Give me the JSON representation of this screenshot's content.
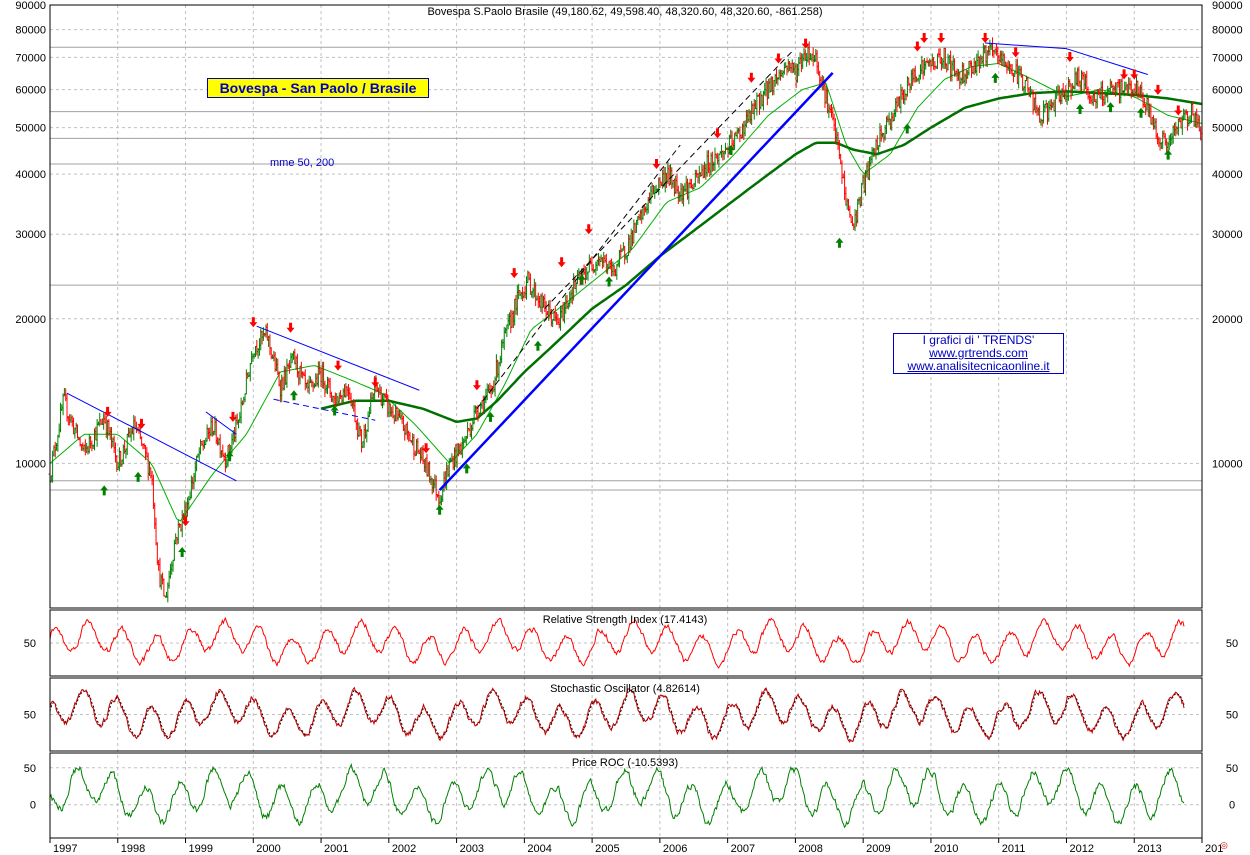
{
  "header": {
    "title": "Bovespa S.Paolo Brasile (49,180.62, 49,598.40, 48,320.60, 48,320.60, -861.258)"
  },
  "annotations": {
    "badge": "Bovespa - San Paolo / Brasile",
    "ma_note": "mme 50, 200",
    "credits": [
      "I grafici di ' TRENDS'",
      "www.grtrends.com",
      "www.analisitecnicaonline.it"
    ]
  },
  "colors": {
    "price_up": "#008000",
    "price_down": "#ff0000",
    "ema_fast": "#00b000",
    "ema_slow": "#007000",
    "trendline": "#0000ff",
    "rsi": "#ff0000",
    "stoch": "#c00000",
    "roc": "#008000",
    "arrow_sell": "#ff0000",
    "arrow_buy": "#008000",
    "grid": "#c0c0c0"
  },
  "chart_data": [
    {
      "type": "line",
      "title": "Bovespa S.Paolo Brasile (49,180.62, 49,598.40, 48,320.60, 48,320.60, -861.258)",
      "scale": "log",
      "ylim": [
        5000,
        90000
      ],
      "yticks": [
        "90000",
        "80000",
        "70000",
        "60000",
        "50000",
        "40000",
        "30000",
        "20000",
        "10000"
      ],
      "ytick_values": [
        90000,
        80000,
        70000,
        60000,
        50000,
        40000,
        30000,
        20000,
        10000
      ],
      "xlabels": [
        "1997",
        "1998",
        "1999",
        "2000",
        "2001",
        "2002",
        "2003",
        "2004",
        "2005",
        "2006",
        "2007",
        "2008",
        "2009",
        "2010",
        "2011",
        "2012",
        "2013",
        "201"
      ],
      "xlim": [
        1997.0,
        2014.0
      ],
      "grid": true,
      "series": [
        {
          "role": "price",
          "x": [
            1997.0,
            1997.2,
            1997.5,
            1997.8,
            1998.0,
            1998.25,
            1998.5,
            1998.6,
            1998.7,
            1998.85,
            1999.0,
            1999.2,
            1999.4,
            1999.6,
            1999.8,
            2000.0,
            2000.2,
            2000.4,
            2000.6,
            2000.8,
            2001.0,
            2001.2,
            2001.4,
            2001.6,
            2001.8,
            2002.0,
            2002.2,
            2002.45,
            2002.6,
            2002.75,
            2002.9,
            2003.1,
            2003.3,
            2003.5,
            2003.7,
            2003.9,
            2004.05,
            2004.3,
            2004.5,
            2004.7,
            2004.9,
            2005.1,
            2005.3,
            2005.5,
            2005.7,
            2005.9,
            2006.1,
            2006.3,
            2006.5,
            2006.7,
            2006.9,
            2007.1,
            2007.3,
            2007.5,
            2007.7,
            2007.9,
            2008.0,
            2008.15,
            2008.3,
            2008.45,
            2008.6,
            2008.75,
            2008.85,
            2009.0,
            2009.2,
            2009.4,
            2009.6,
            2009.8,
            2010.0,
            2010.2,
            2010.4,
            2010.6,
            2010.85,
            2011.0,
            2011.2,
            2011.4,
            2011.6,
            2011.8,
            2012.0,
            2012.2,
            2012.4,
            2012.6,
            2012.8,
            2013.0,
            2013.2,
            2013.35,
            2013.5,
            2013.7,
            2013.85,
            2014.0
          ],
          "y": [
            9500,
            13500,
            10500,
            12500,
            10000,
            12000,
            9500,
            6000,
            5200,
            7000,
            8000,
            10500,
            12000,
            10200,
            12500,
            17500,
            18500,
            14500,
            16500,
            14000,
            15500,
            13500,
            14500,
            11000,
            14500,
            13000,
            12000,
            10500,
            9500,
            8500,
            10000,
            11000,
            13000,
            14000,
            18000,
            22000,
            24000,
            21000,
            19500,
            23000,
            25000,
            27000,
            25000,
            28000,
            32000,
            37000,
            40000,
            37000,
            38000,
            42000,
            44000,
            47000,
            52000,
            58000,
            63000,
            68000,
            65000,
            72000,
            70000,
            58000,
            48000,
            35000,
            31000,
            38000,
            46000,
            52000,
            59000,
            66000,
            68000,
            70000,
            64000,
            67000,
            72000,
            70000,
            66000,
            62000,
            52000,
            56000,
            60000,
            64000,
            57000,
            59000,
            60000,
            61000,
            55000,
            48000,
            46000,
            52000,
            54000,
            48300
          ]
        },
        {
          "name": "mme 50",
          "role": "ema_fast",
          "x": [
            1997.0,
            1997.5,
            1998.0,
            1998.5,
            1998.9,
            1999.4,
            1999.9,
            2000.4,
            2000.9,
            2001.4,
            2001.9,
            2002.4,
            2002.9,
            2003.3,
            2003.7,
            2004.1,
            2004.6,
            2005.1,
            2005.6,
            2006.1,
            2006.6,
            2007.1,
            2007.6,
            2008.1,
            2008.45,
            2008.75,
            2009.0,
            2009.4,
            2009.8,
            2010.2,
            2010.6,
            2011.0,
            2011.5,
            2012.0,
            2012.5,
            2013.0,
            2013.5,
            2014.0
          ],
          "y": [
            10000,
            11500,
            11500,
            10000,
            7500,
            9500,
            11500,
            15500,
            16000,
            15000,
            14000,
            12000,
            10000,
            11500,
            14500,
            19000,
            21500,
            24500,
            28000,
            35000,
            37500,
            44000,
            53000,
            60000,
            62000,
            46000,
            40000,
            44000,
            55000,
            63000,
            67000,
            68000,
            63000,
            58000,
            60000,
            58000,
            53000,
            51000
          ]
        },
        {
          "name": "mme 200",
          "role": "ema_slow",
          "x": [
            2001.0,
            2001.5,
            2002.0,
            2002.5,
            2003.0,
            2003.3,
            2003.6,
            2004.0,
            2004.5,
            2005.0,
            2005.5,
            2006.0,
            2006.5,
            2007.0,
            2007.5,
            2008.0,
            2008.3,
            2008.6,
            2008.85,
            2009.2,
            2009.6,
            2010.0,
            2010.5,
            2011.0,
            2011.5,
            2012.0,
            2012.5,
            2013.0,
            2013.5,
            2014.0
          ],
          "y": [
            13000,
            13500,
            13500,
            13000,
            12200,
            12400,
            13500,
            15500,
            18000,
            21000,
            23500,
            27000,
            30500,
            34500,
            39000,
            44000,
            46500,
            46500,
            45000,
            44000,
            46000,
            50000,
            55000,
            57500,
            59000,
            59500,
            59000,
            58500,
            57500,
            56000
          ]
        }
      ]
    },
    {
      "type": "line",
      "title": "Relative Strength Index (17.4143)",
      "yticks": [
        "50"
      ],
      "ytick_values": [
        50
      ],
      "ylim": [
        20,
        80
      ],
      "grid": true,
      "last_value": 17.4143
    },
    {
      "type": "line",
      "title": "Stochastic Oscillator (4.82614)",
      "yticks": [
        "50"
      ],
      "ytick_values": [
        50
      ],
      "ylim": [
        0,
        100
      ],
      "grid": true,
      "last_value": 4.82614
    },
    {
      "type": "line",
      "title": "Price ROC (-10.5393)",
      "yticks": [
        "50",
        "0"
      ],
      "ytick_values": [
        50,
        0
      ],
      "ylim": [
        -45,
        70
      ],
      "grid": true,
      "last_value": -10.5393
    }
  ],
  "markers": {
    "sell_arrows": [
      [
        1997.85,
        12500
      ],
      [
        1998.35,
        11800
      ],
      [
        1999.0,
        7400
      ],
      [
        1999.7,
        12200
      ],
      [
        2000.0,
        19200
      ],
      [
        2000.55,
        18700
      ],
      [
        2001.25,
        15600
      ],
      [
        2001.8,
        14400
      ],
      [
        2002.55,
        10500
      ],
      [
        2003.3,
        14200
      ],
      [
        2003.85,
        24300
      ],
      [
        2004.55,
        25600
      ],
      [
        2004.95,
        30000
      ],
      [
        2005.95,
        41000
      ],
      [
        2006.85,
        47500
      ],
      [
        2007.35,
        62000
      ],
      [
        2007.75,
        68000
      ],
      [
        2008.15,
        73000
      ],
      [
        2009.8,
        72000
      ],
      [
        2009.9,
        75000
      ],
      [
        2010.15,
        75000
      ],
      [
        2010.8,
        75000
      ],
      [
        2011.25,
        70000
      ],
      [
        2012.05,
        68500
      ],
      [
        2012.85,
        63000
      ],
      [
        2013.0,
        63000
      ],
      [
        2013.35,
        58500
      ],
      [
        2013.65,
        53000
      ]
    ],
    "buy_arrows": [
      [
        1997.8,
        9000
      ],
      [
        1998.3,
        9600
      ],
      [
        1998.95,
        6700
      ],
      [
        1999.65,
        10600
      ],
      [
        2000.6,
        14200
      ],
      [
        2001.2,
        13200
      ],
      [
        2002.75,
        8200
      ],
      [
        2003.15,
        10000
      ],
      [
        2003.5,
        12800
      ],
      [
        2004.2,
        18000
      ],
      [
        2004.85,
        24700
      ],
      [
        2005.25,
        24500
      ],
      [
        2007.05,
        46000
      ],
      [
        2008.65,
        29500
      ],
      [
        2009.65,
        51000
      ],
      [
        2010.95,
        65000
      ],
      [
        2012.2,
        56000
      ],
      [
        2012.65,
        56500
      ],
      [
        2013.1,
        55000
      ],
      [
        2013.5,
        45000
      ]
    ],
    "trendlines": [
      {
        "from": [
          1997.25,
          14000
        ],
        "to": [
          1999.75,
          9200
        ],
        "style": "solid",
        "width": 1
      },
      {
        "from": [
          1999.3,
          12800
        ],
        "to": [
          1999.75,
          11500
        ],
        "style": "solid",
        "width": 1
      },
      {
        "from": [
          2000.05,
          19300
        ],
        "to": [
          2002.45,
          14200
        ],
        "style": "solid",
        "width": 1
      },
      {
        "from": [
          2000.3,
          13600
        ],
        "to": [
          2001.8,
          12300
        ],
        "style": "dashed",
        "width": 1
      },
      {
        "from": [
          2002.75,
          8800
        ],
        "to": [
          2008.55,
          65000
        ],
        "style": "solid",
        "width": 2.5
      },
      {
        "from": [
          2012.0,
          73000
        ],
        "to": [
          2013.2,
          64500
        ],
        "style": "solid",
        "width": 1
      },
      {
        "from": [
          2010.8,
          75000
        ],
        "to": [
          2012.0,
          73000
        ],
        "style": "solid",
        "width": 1
      },
      {
        "from": [
          2003.3,
          13000
        ],
        "to": [
          2006.3,
          46000
        ],
        "style": "dashed",
        "width": 1
      },
      {
        "from": [
          2004.3,
          21000
        ],
        "to": [
          2007.95,
          72000
        ],
        "style": "dashed",
        "width": 1
      }
    ],
    "hlines": [
      73500,
      54000,
      47500,
      42000,
      23500,
      9200,
      8800
    ]
  }
}
